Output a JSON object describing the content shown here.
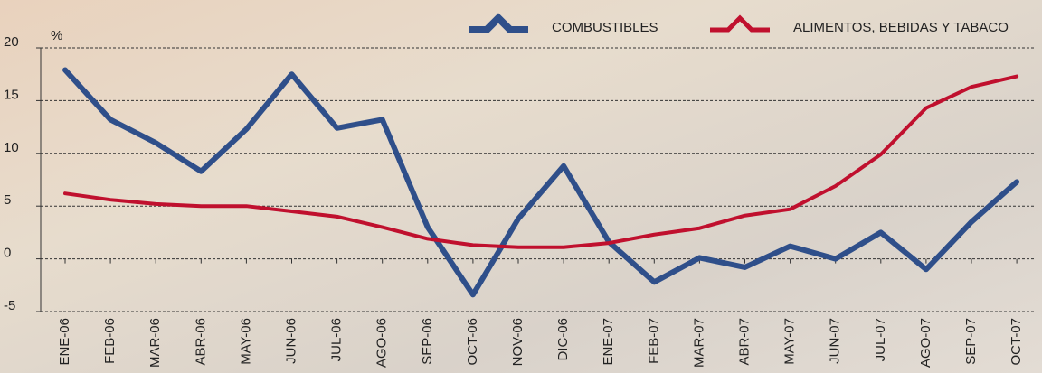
{
  "chart_data": {
    "type": "line",
    "y_label": "%",
    "categories": [
      "ENE-06",
      "FEB-06",
      "MAR-06",
      "ABR-06",
      "MAY-06",
      "JUN-06",
      "JUL-06",
      "AGO-06",
      "SEP-06",
      "OCT-06",
      "NOV-06",
      "DIC-06",
      "ENE-07",
      "FEB-07",
      "MAR-07",
      "ABR-07",
      "MAY-07",
      "JUN-07",
      "JUL-07",
      "AGO-07",
      "SEP-07",
      "OCT-07"
    ],
    "series": [
      {
        "name": "COMBUSTIBLES",
        "color": "#2f4f8a",
        "values": [
          17.9,
          13.2,
          11.0,
          8.3,
          12.3,
          17.5,
          12.4,
          13.2,
          3.0,
          -3.4,
          3.8,
          8.8,
          1.6,
          -2.2,
          0.1,
          -0.8,
          1.2,
          0,
          2.5,
          -1.0,
          3.5,
          7.3
        ]
      },
      {
        "name": "ALIMENTOS, BEBIDAS Y TABACO",
        "color": "#c0102e",
        "values": [
          6.2,
          5.6,
          5.2,
          5.0,
          5.0,
          4.5,
          4.0,
          3.0,
          1.9,
          1.3,
          1.1,
          1.1,
          1.5,
          2.3,
          2.9,
          4.1,
          4.7,
          6.9,
          9.9,
          14.3,
          16.3,
          17.3
        ]
      }
    ],
    "ylim": [
      -5,
      20
    ],
    "yticks": [
      -5,
      0,
      5,
      10,
      15,
      20
    ],
    "grid": true
  }
}
